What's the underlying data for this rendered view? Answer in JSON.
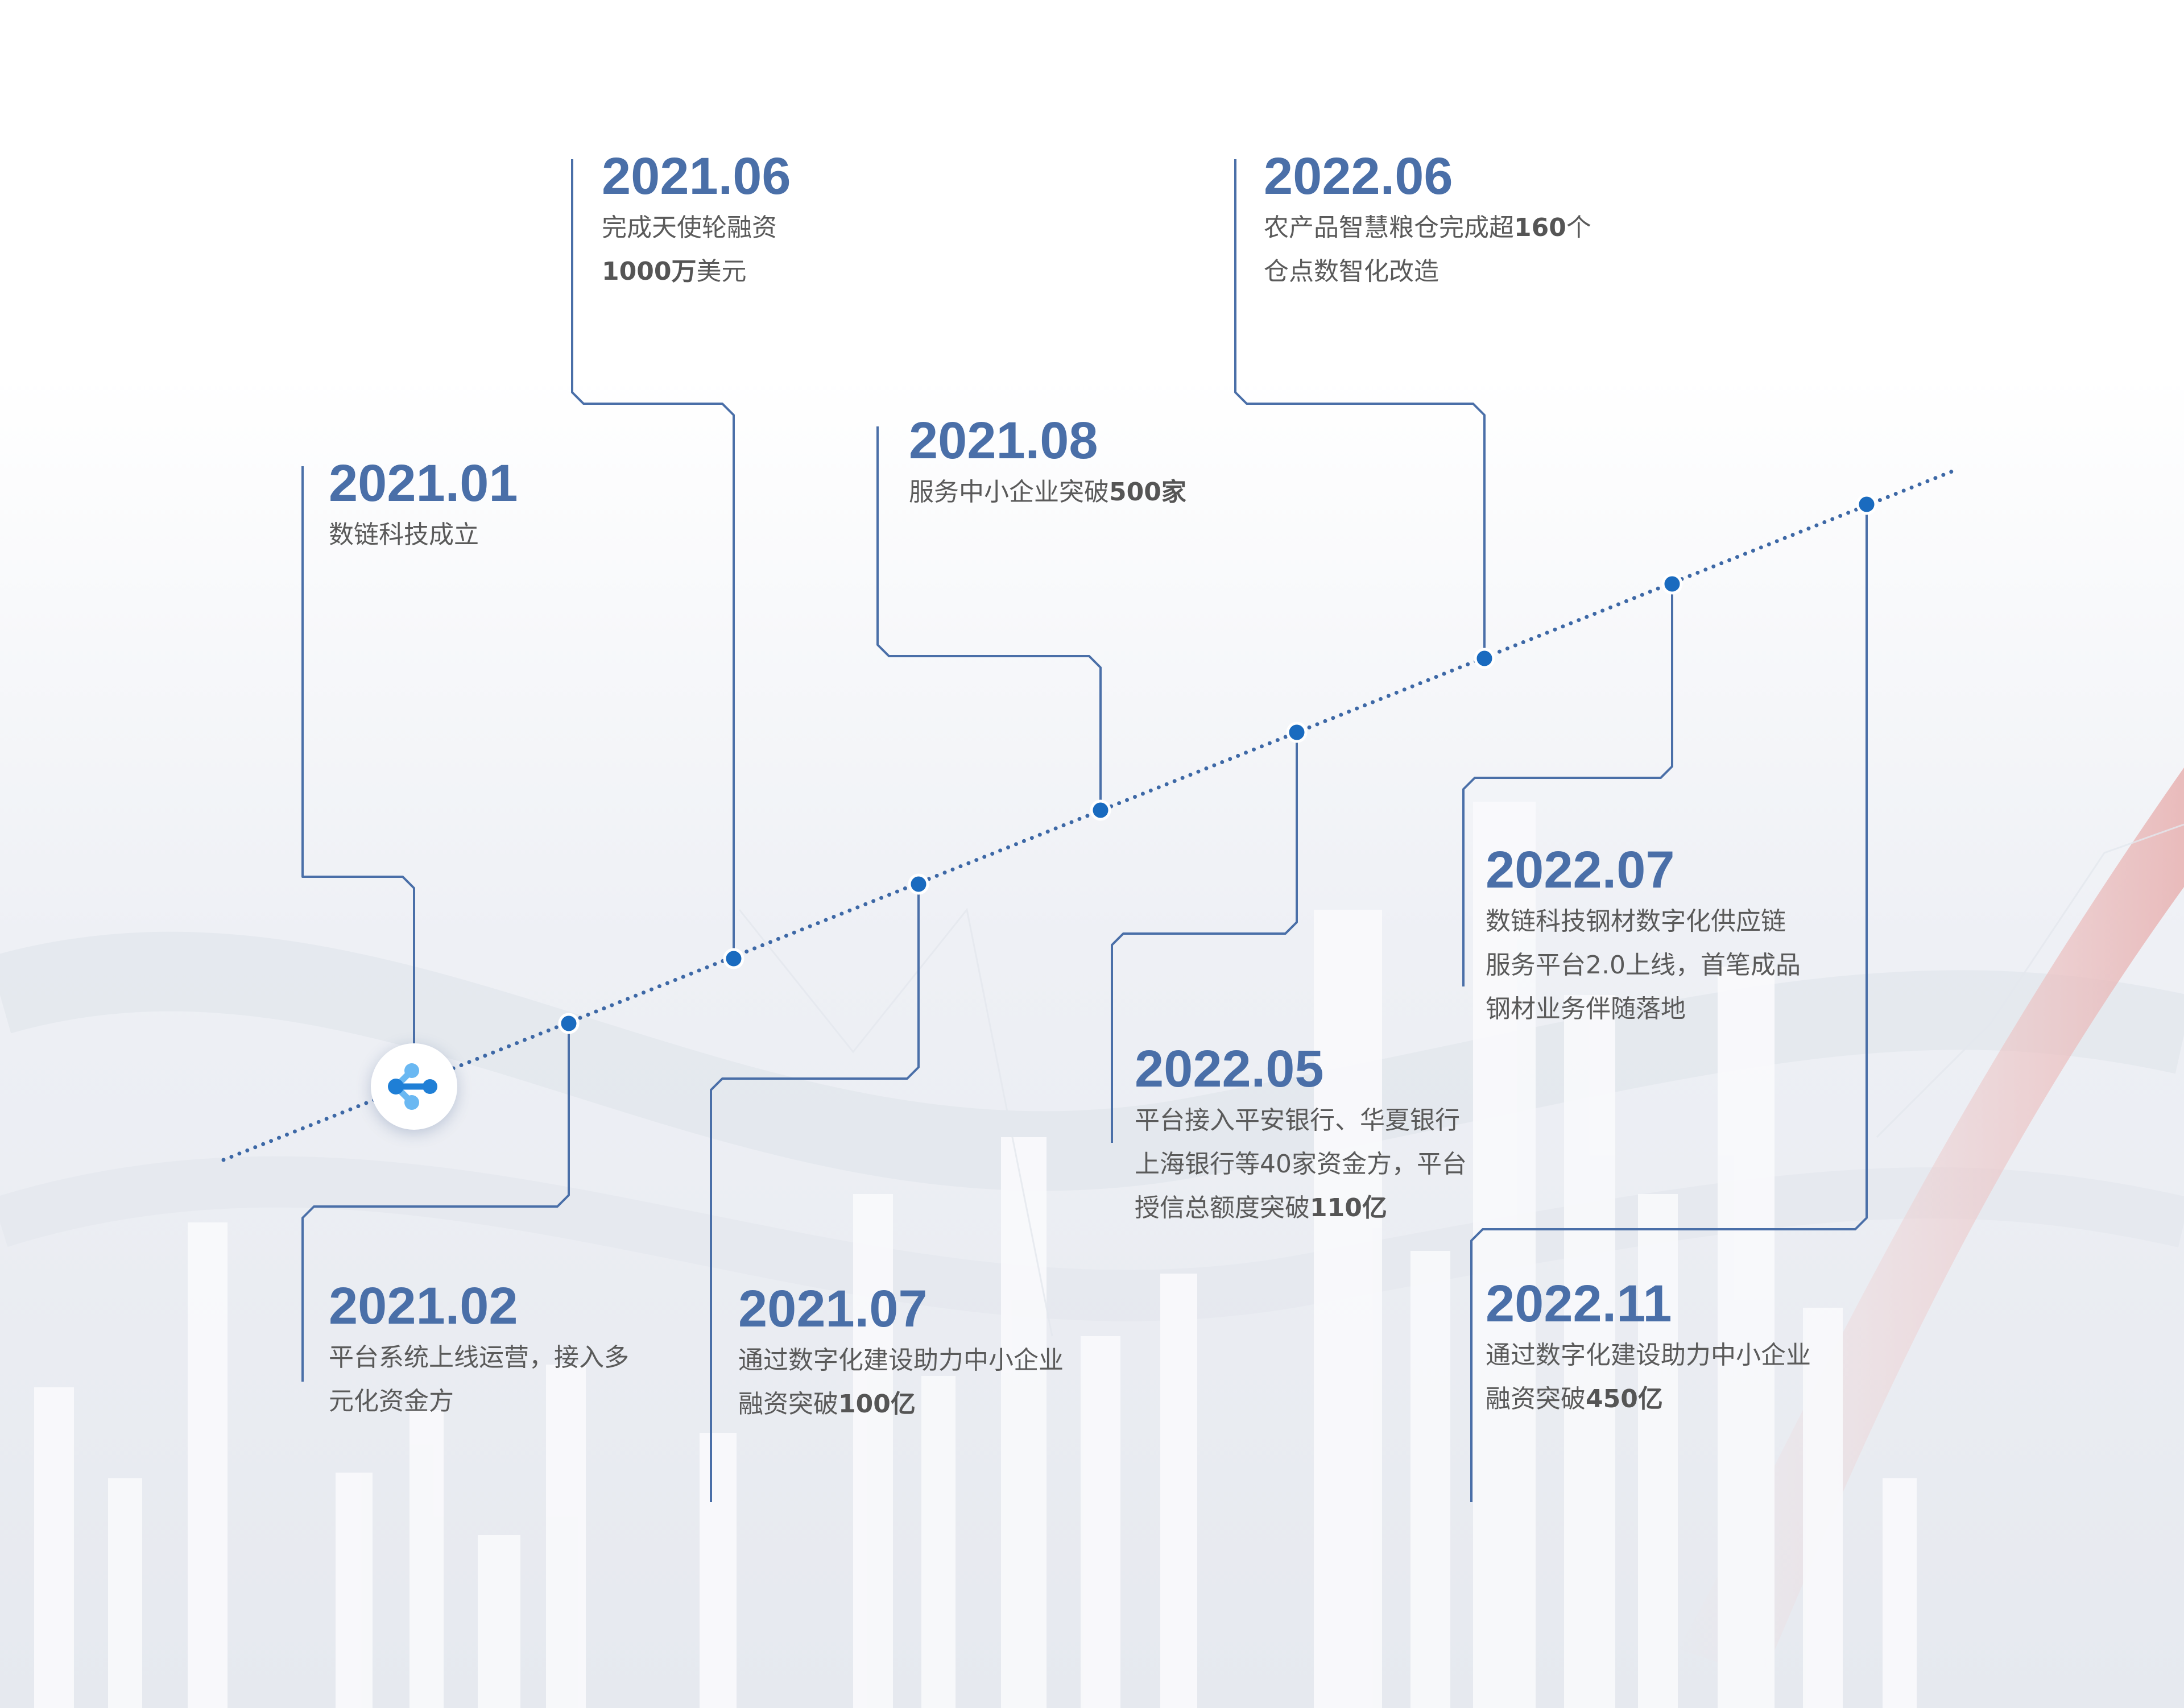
{
  "milestones": [
    {
      "date": "2021.01",
      "lines": [
        [
          {
            "t": "数链科技成立",
            "b": false
          }
        ]
      ]
    },
    {
      "date": "2021.02",
      "lines": [
        [
          {
            "t": "平台系统上线运营，接入多",
            "b": false
          }
        ],
        [
          {
            "t": "元化资金方",
            "b": false
          }
        ]
      ]
    },
    {
      "date": "2021.06",
      "lines": [
        [
          {
            "t": "完成天使轮融资",
            "b": false
          }
        ],
        [
          {
            "t": "1000万",
            "b": true
          },
          {
            "t": "美元",
            "b": false
          }
        ]
      ]
    },
    {
      "date": "2021.07",
      "lines": [
        [
          {
            "t": "通过数字化建设助力中小企业",
            "b": false
          }
        ],
        [
          {
            "t": "融资突破",
            "b": false
          },
          {
            "t": "100亿",
            "b": true
          }
        ]
      ]
    },
    {
      "date": "2021.08",
      "lines": [
        [
          {
            "t": "服务中小企业突破",
            "b": false
          },
          {
            "t": "500家",
            "b": true
          }
        ]
      ]
    },
    {
      "date": "2022.05",
      "lines": [
        [
          {
            "t": "平台接入平安银行、华夏银行",
            "b": false
          }
        ],
        [
          {
            "t": "上海银行等40家资金方，平台",
            "b": false
          }
        ],
        [
          {
            "t": "授信总额度突破",
            "b": false
          },
          {
            "t": "110亿",
            "b": true
          }
        ]
      ]
    },
    {
      "date": "2022.06",
      "lines": [
        [
          {
            "t": "农产品智慧粮仓完成超",
            "b": false
          },
          {
            "t": "160",
            "b": true
          },
          {
            "t": "个",
            "b": false
          }
        ],
        [
          {
            "t": "仓点数智化改造",
            "b": false
          }
        ]
      ]
    },
    {
      "date": "2022.07",
      "lines": [
        [
          {
            "t": "数链科技钢材数字化供应链",
            "b": false
          }
        ],
        [
          {
            "t": "服务平台2.0上线，首笔成品",
            "b": false
          }
        ],
        [
          {
            "t": "钢材业务伴随落地",
            "b": false
          }
        ]
      ]
    },
    {
      "date": "2022.11",
      "lines": [
        [
          {
            "t": "通过数字化建设助力中小企业",
            "b": false
          }
        ],
        [
          {
            "t": "融资突破",
            "b": false
          },
          {
            "t": "450亿",
            "b": true
          }
        ]
      ]
    }
  ],
  "logo": {
    "icon": "network-nodes-icon",
    "color_light": "#6ab8f2",
    "color_dark": "#1f7fd6"
  },
  "colors": {
    "date": "#4a6fa8",
    "text": "#5a5a5a",
    "line": "#4a6fa8",
    "dot": "#1a6bbf",
    "dotted_axis": "#3d68a6"
  }
}
